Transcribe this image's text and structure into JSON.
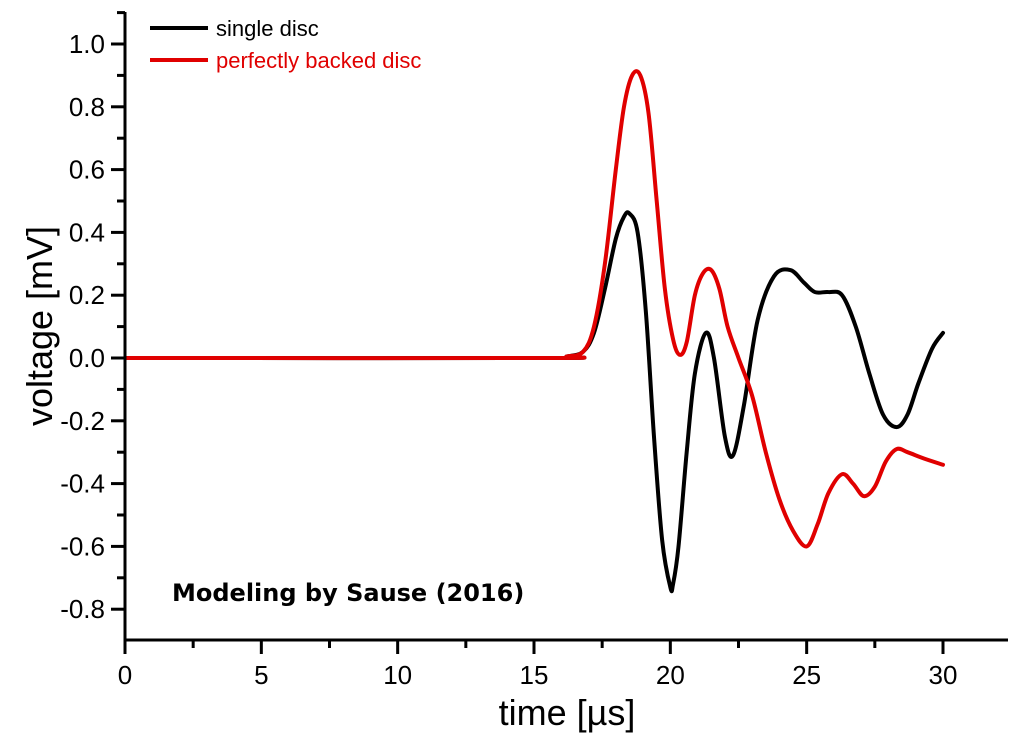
{
  "chart_data": {
    "type": "line",
    "xlabel": "time [µs]",
    "ylabel": "voltage [mV]",
    "xlim": [
      0,
      32.5
    ],
    "ylim": [
      -0.9,
      1.1
    ],
    "xticks": [
      0,
      5,
      10,
      15,
      20,
      25,
      30
    ],
    "xtick_labels": [
      "0",
      "5",
      "10",
      "15",
      "20",
      "25",
      "30"
    ],
    "yticks": [
      -0.8,
      -0.6,
      -0.4,
      -0.2,
      0.0,
      0.2,
      0.4,
      0.6,
      0.8,
      1.0
    ],
    "ytick_labels": [
      "-0.8",
      "-0.6",
      "-0.4",
      "-0.2",
      "0.0",
      "0.2",
      "0.4",
      "0.6",
      "0.8",
      "1.0"
    ],
    "grid": false,
    "legend_position": "top-left",
    "annotation": "Modeling by Sause (2016)",
    "series": [
      {
        "name": "single disc",
        "color": "#000000",
        "x": [
          0,
          15.5,
          16.2,
          16.8,
          17.2,
          17.6,
          18.0,
          18.3,
          18.5,
          18.8,
          19.1,
          19.4,
          19.7,
          20.0,
          20.1,
          20.3,
          20.6,
          20.9,
          21.3,
          21.6,
          22.0,
          22.3,
          22.7,
          23.2,
          23.8,
          24.4,
          24.9,
          25.3,
          25.8,
          26.3,
          26.8,
          27.3,
          27.8,
          28.3,
          28.7,
          29.1,
          29.6,
          30.0
        ],
        "y": [
          0,
          0,
          0.005,
          0.02,
          0.08,
          0.22,
          0.38,
          0.45,
          0.46,
          0.4,
          0.15,
          -0.25,
          -0.58,
          -0.73,
          -0.72,
          -0.6,
          -0.3,
          -0.05,
          0.08,
          0.0,
          -0.25,
          -0.31,
          -0.15,
          0.12,
          0.26,
          0.28,
          0.24,
          0.21,
          0.21,
          0.2,
          0.1,
          -0.05,
          -0.18,
          -0.22,
          -0.18,
          -0.08,
          0.03,
          0.08
        ]
      },
      {
        "name": "perfectly backed disc",
        "color": "#e00000",
        "x": [
          0,
          15.5,
          16.2,
          16.8,
          17.2,
          17.6,
          18.0,
          18.3,
          18.6,
          18.9,
          19.2,
          19.5,
          19.8,
          20.1,
          20.35,
          20.6,
          20.9,
          21.2,
          21.5,
          21.8,
          22.1,
          22.5,
          23.0,
          23.5,
          24.0,
          24.5,
          25.0,
          25.4,
          25.8,
          26.3,
          26.7,
          27.1,
          27.5,
          27.9,
          28.3,
          28.7,
          29.3,
          30.0
        ],
        "y": [
          0,
          0,
          0.005,
          0.02,
          0.1,
          0.3,
          0.6,
          0.8,
          0.9,
          0.9,
          0.78,
          0.5,
          0.22,
          0.06,
          0.01,
          0.05,
          0.2,
          0.27,
          0.28,
          0.22,
          0.1,
          0.0,
          -0.12,
          -0.3,
          -0.45,
          -0.55,
          -0.6,
          -0.53,
          -0.43,
          -0.37,
          -0.4,
          -0.44,
          -0.41,
          -0.33,
          -0.29,
          -0.3,
          -0.32,
          -0.34
        ]
      }
    ]
  }
}
